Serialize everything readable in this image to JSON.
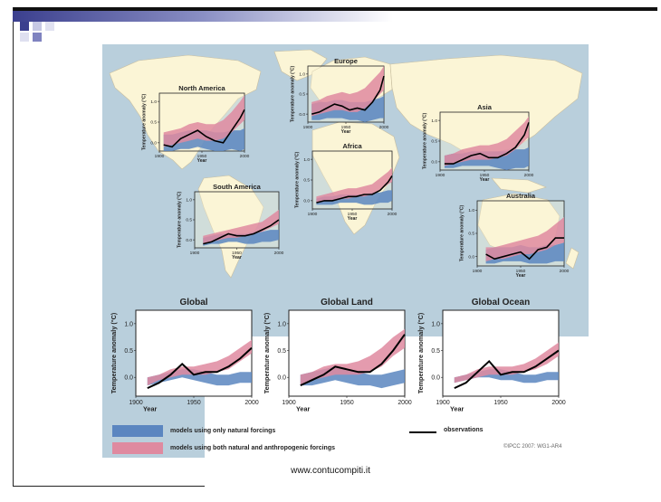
{
  "slide": {
    "footer": "www.contucompiti.it"
  },
  "legend": {
    "natural": "models using only natural forcings",
    "both": "models using both natural and anthropogenic forcings",
    "observations": "observations",
    "credit": "©IPCC 2007: WG1-AR4"
  },
  "colors": {
    "natural_band": "#5b86c0",
    "both_band": "#df8aa0",
    "observation_line": "#000000",
    "ocean": "#b9cfdc",
    "land": "#fbf5d6"
  },
  "chart_data": [
    {
      "type": "area",
      "title": "North America",
      "ylabel": "Temperature anomaly (°C)",
      "xlabel": "Year",
      "xlim": [
        1900,
        2000
      ],
      "ylim": [
        -0.2,
        1.2
      ],
      "xticks": [
        1900,
        1950,
        2000
      ],
      "yticks": [
        0.0,
        0.5,
        1.0
      ],
      "x": [
        1905,
        1915,
        1925,
        1935,
        1945,
        1955,
        1965,
        1975,
        1985,
        1995,
        2000
      ],
      "series": [
        {
          "name": "observations",
          "values": [
            -0.05,
            -0.1,
            0.1,
            0.2,
            0.3,
            0.15,
            0.05,
            0.0,
            0.3,
            0.6,
            0.8
          ]
        },
        {
          "name": "natural_low",
          "values": [
            -0.2,
            -0.2,
            -0.15,
            -0.15,
            -0.1,
            -0.15,
            -0.2,
            -0.2,
            -0.15,
            -0.2,
            -0.15
          ]
        },
        {
          "name": "natural_high",
          "values": [
            0.2,
            0.2,
            0.25,
            0.3,
            0.3,
            0.3,
            0.25,
            0.25,
            0.3,
            0.3,
            0.35
          ]
        },
        {
          "name": "both_low",
          "values": [
            -0.1,
            -0.05,
            0.0,
            0.05,
            0.1,
            0.05,
            0.05,
            0.1,
            0.25,
            0.45,
            0.55
          ]
        },
        {
          "name": "both_high",
          "values": [
            0.25,
            0.3,
            0.35,
            0.45,
            0.5,
            0.45,
            0.45,
            0.55,
            0.75,
            1.0,
            1.15
          ]
        }
      ]
    },
    {
      "type": "area",
      "title": "Europe",
      "ylabel": "Temperature anomaly (°C)",
      "xlabel": "Year",
      "xlim": [
        1900,
        2000
      ],
      "ylim": [
        -0.2,
        1.2
      ],
      "xticks": [
        1900,
        1950,
        2000
      ],
      "yticks": [
        0.0,
        0.5,
        1.0
      ],
      "x": [
        1905,
        1915,
        1925,
        1935,
        1945,
        1955,
        1965,
        1975,
        1985,
        1995,
        2000
      ],
      "series": [
        {
          "name": "observations",
          "values": [
            0.0,
            0.05,
            0.15,
            0.25,
            0.2,
            0.1,
            0.15,
            0.1,
            0.3,
            0.6,
            0.95
          ]
        },
        {
          "name": "natural_low",
          "values": [
            -0.15,
            -0.15,
            -0.1,
            -0.1,
            -0.1,
            -0.15,
            -0.15,
            -0.2,
            -0.15,
            -0.1,
            -0.1
          ]
        },
        {
          "name": "natural_high",
          "values": [
            0.25,
            0.3,
            0.3,
            0.35,
            0.35,
            0.3,
            0.3,
            0.3,
            0.35,
            0.4,
            0.45
          ]
        },
        {
          "name": "both_low",
          "values": [
            -0.05,
            0.0,
            0.05,
            0.1,
            0.1,
            0.05,
            0.05,
            0.15,
            0.3,
            0.5,
            0.6
          ]
        },
        {
          "name": "both_high",
          "values": [
            0.3,
            0.35,
            0.45,
            0.5,
            0.55,
            0.5,
            0.55,
            0.65,
            0.85,
            1.05,
            1.2
          ]
        }
      ]
    },
    {
      "type": "area",
      "title": "Asia",
      "ylabel": "Temperature anomaly (°C)",
      "xlabel": "Year",
      "xlim": [
        1900,
        2000
      ],
      "ylim": [
        -0.2,
        1.2
      ],
      "xticks": [
        1900,
        1950,
        2000
      ],
      "yticks": [
        0.0,
        0.5,
        1.0
      ],
      "x": [
        1905,
        1915,
        1925,
        1935,
        1945,
        1955,
        1965,
        1975,
        1985,
        1995,
        2000
      ],
      "series": [
        {
          "name": "observations",
          "values": [
            -0.05,
            -0.05,
            0.05,
            0.15,
            0.2,
            0.1,
            0.1,
            0.2,
            0.35,
            0.65,
            0.95
          ]
        },
        {
          "name": "natural_low",
          "values": [
            -0.15,
            -0.15,
            -0.1,
            -0.1,
            -0.1,
            -0.1,
            -0.15,
            -0.2,
            -0.15,
            -0.15,
            -0.1
          ]
        },
        {
          "name": "natural_high",
          "values": [
            0.15,
            0.2,
            0.2,
            0.25,
            0.25,
            0.25,
            0.25,
            0.25,
            0.3,
            0.3,
            0.35
          ]
        },
        {
          "name": "both_low",
          "values": [
            -0.1,
            -0.05,
            0.0,
            0.05,
            0.05,
            0.05,
            0.1,
            0.15,
            0.3,
            0.5,
            0.6
          ]
        },
        {
          "name": "both_high",
          "values": [
            0.15,
            0.2,
            0.3,
            0.35,
            0.4,
            0.4,
            0.45,
            0.55,
            0.75,
            0.95,
            1.1
          ]
        }
      ]
    },
    {
      "type": "area",
      "title": "Africa",
      "ylabel": "Temperature anomaly (°C)",
      "xlabel": "Year",
      "xlim": [
        1900,
        2000
      ],
      "ylim": [
        -0.2,
        1.2
      ],
      "xticks": [
        1900,
        1950,
        2000
      ],
      "yticks": [
        0.0,
        0.5,
        1.0
      ],
      "x": [
        1905,
        1915,
        1925,
        1935,
        1945,
        1955,
        1965,
        1975,
        1985,
        1995,
        2000
      ],
      "series": [
        {
          "name": "observations",
          "values": [
            -0.05,
            0.0,
            0.0,
            0.05,
            0.1,
            0.1,
            0.15,
            0.15,
            0.25,
            0.45,
            0.6
          ]
        },
        {
          "name": "natural_low",
          "values": [
            -0.1,
            -0.1,
            -0.1,
            -0.05,
            -0.05,
            -0.05,
            -0.1,
            -0.1,
            -0.05,
            -0.05,
            0.0
          ]
        },
        {
          "name": "natural_high",
          "values": [
            0.05,
            0.1,
            0.1,
            0.15,
            0.15,
            0.15,
            0.15,
            0.2,
            0.2,
            0.25,
            0.25
          ]
        },
        {
          "name": "both_low",
          "values": [
            -0.05,
            0.0,
            0.0,
            0.05,
            0.05,
            0.1,
            0.1,
            0.15,
            0.25,
            0.4,
            0.45
          ]
        },
        {
          "name": "both_high",
          "values": [
            0.1,
            0.15,
            0.2,
            0.25,
            0.3,
            0.3,
            0.35,
            0.4,
            0.55,
            0.7,
            0.8
          ]
        }
      ]
    },
    {
      "type": "area",
      "title": "South America",
      "ylabel": "Temperature anomaly (°C)",
      "xlabel": "Year",
      "xlim": [
        1900,
        2000
      ],
      "ylim": [
        -0.2,
        1.2
      ],
      "xticks": [
        1900,
        1950,
        2000
      ],
      "yticks": [
        0.0,
        0.5,
        1.0
      ],
      "x": [
        1910,
        1920,
        1930,
        1940,
        1950,
        1960,
        1970,
        1980,
        1990,
        2000
      ],
      "series": [
        {
          "name": "observations",
          "values": [
            -0.1,
            -0.05,
            0.05,
            0.15,
            0.1,
            0.1,
            0.15,
            0.25,
            0.35,
            0.5
          ]
        },
        {
          "name": "natural_low",
          "values": [
            -0.15,
            -0.1,
            -0.1,
            -0.05,
            -0.05,
            -0.1,
            -0.1,
            -0.05,
            -0.05,
            0.0
          ]
        },
        {
          "name": "natural_high",
          "values": [
            0.05,
            0.1,
            0.15,
            0.15,
            0.15,
            0.15,
            0.2,
            0.2,
            0.25,
            0.25
          ]
        },
        {
          "name": "both_low",
          "values": [
            -0.1,
            -0.05,
            0.0,
            0.05,
            0.05,
            0.1,
            0.15,
            0.2,
            0.3,
            0.4
          ]
        },
        {
          "name": "both_high",
          "values": [
            0.1,
            0.15,
            0.2,
            0.25,
            0.3,
            0.35,
            0.4,
            0.45,
            0.6,
            0.75
          ]
        }
      ]
    },
    {
      "type": "area",
      "title": "Australia",
      "ylabel": "Temperature anomaly (°C)",
      "xlabel": "Year",
      "xlim": [
        1900,
        2000
      ],
      "ylim": [
        -0.2,
        1.2
      ],
      "xticks": [
        1900,
        1950,
        2000
      ],
      "yticks": [
        0.0,
        0.5,
        1.0
      ],
      "x": [
        1910,
        1920,
        1930,
        1940,
        1950,
        1960,
        1970,
        1980,
        1990,
        2000
      ],
      "series": [
        {
          "name": "observations",
          "values": [
            0.05,
            -0.05,
            0.0,
            0.05,
            0.1,
            -0.05,
            0.15,
            0.2,
            0.4,
            0.4
          ]
        },
        {
          "name": "natural_low",
          "values": [
            -0.15,
            -0.15,
            -0.1,
            -0.1,
            -0.1,
            -0.15,
            -0.15,
            -0.15,
            -0.1,
            -0.1
          ]
        },
        {
          "name": "natural_high",
          "values": [
            0.15,
            0.2,
            0.2,
            0.2,
            0.25,
            0.2,
            0.2,
            0.25,
            0.25,
            0.3
          ]
        },
        {
          "name": "both_low",
          "values": [
            -0.1,
            -0.05,
            -0.05,
            0.0,
            0.05,
            0.05,
            0.1,
            0.15,
            0.25,
            0.3
          ]
        },
        {
          "name": "both_high",
          "values": [
            0.2,
            0.2,
            0.25,
            0.3,
            0.35,
            0.4,
            0.45,
            0.55,
            0.7,
            0.85
          ]
        }
      ]
    },
    {
      "type": "area",
      "title": "Global",
      "ylabel": "Temperature anomaly (°C)",
      "xlabel": "Year",
      "xlim": [
        1900,
        2000
      ],
      "ylim": [
        -0.35,
        1.25
      ],
      "xticks": [
        1900,
        1950,
        2000
      ],
      "yticks": [
        0.0,
        0.5,
        1.0
      ],
      "x": [
        1910,
        1920,
        1930,
        1940,
        1950,
        1960,
        1970,
        1980,
        1990,
        2000
      ],
      "series": [
        {
          "name": "observations",
          "values": [
            -0.2,
            -0.1,
            0.05,
            0.25,
            0.05,
            0.1,
            0.1,
            0.2,
            0.35,
            0.55
          ]
        },
        {
          "name": "natural_low",
          "values": [
            -0.15,
            -0.1,
            -0.05,
            0.0,
            -0.05,
            -0.1,
            -0.15,
            -0.15,
            -0.1,
            -0.1
          ]
        },
        {
          "name": "natural_high",
          "values": [
            0.0,
            0.05,
            0.1,
            0.15,
            0.15,
            0.1,
            0.05,
            0.05,
            0.1,
            0.1
          ]
        },
        {
          "name": "both_low",
          "values": [
            -0.15,
            -0.05,
            0.0,
            0.05,
            0.05,
            0.05,
            0.1,
            0.15,
            0.3,
            0.45
          ]
        },
        {
          "name": "both_high",
          "values": [
            0.0,
            0.05,
            0.15,
            0.2,
            0.2,
            0.25,
            0.3,
            0.4,
            0.55,
            0.7
          ]
        }
      ]
    },
    {
      "type": "area",
      "title": "Global Land",
      "ylabel": "Temperature anomaly (°C)",
      "xlabel": "Year",
      "xlim": [
        1900,
        2000
      ],
      "ylim": [
        -0.35,
        1.25
      ],
      "xticks": [
        1900,
        1950,
        2000
      ],
      "yticks": [
        0.0,
        0.5,
        1.0
      ],
      "x": [
        1910,
        1920,
        1930,
        1940,
        1950,
        1960,
        1970,
        1980,
        1990,
        2000
      ],
      "series": [
        {
          "name": "observations",
          "values": [
            -0.15,
            -0.05,
            0.05,
            0.2,
            0.15,
            0.1,
            0.1,
            0.25,
            0.5,
            0.8
          ]
        },
        {
          "name": "natural_low",
          "values": [
            -0.15,
            -0.15,
            -0.1,
            -0.05,
            -0.1,
            -0.15,
            -0.15,
            -0.2,
            -0.15,
            -0.1
          ]
        },
        {
          "name": "natural_high",
          "values": [
            0.05,
            0.1,
            0.15,
            0.2,
            0.15,
            0.1,
            0.05,
            0.05,
            0.1,
            0.15
          ]
        },
        {
          "name": "both_low",
          "values": [
            -0.15,
            -0.05,
            0.0,
            0.05,
            0.05,
            0.05,
            0.1,
            0.2,
            0.4,
            0.55
          ]
        },
        {
          "name": "both_high",
          "values": [
            0.05,
            0.1,
            0.2,
            0.25,
            0.25,
            0.3,
            0.4,
            0.55,
            0.75,
            0.9
          ]
        }
      ]
    },
    {
      "type": "area",
      "title": "Global Ocean",
      "ylabel": "Temperature anomaly (°C)",
      "xlabel": "Year",
      "xlim": [
        1900,
        2000
      ],
      "ylim": [
        -0.35,
        1.25
      ],
      "xticks": [
        1900,
        1950,
        2000
      ],
      "yticks": [
        0.0,
        0.5,
        1.0
      ],
      "x": [
        1910,
        1920,
        1930,
        1940,
        1950,
        1960,
        1970,
        1980,
        1990,
        2000
      ],
      "series": [
        {
          "name": "observations",
          "values": [
            -0.2,
            -0.1,
            0.1,
            0.3,
            0.05,
            0.1,
            0.1,
            0.2,
            0.35,
            0.5
          ]
        },
        {
          "name": "natural_low",
          "values": [
            -0.1,
            -0.05,
            0.0,
            0.0,
            -0.05,
            -0.05,
            -0.1,
            -0.1,
            -0.05,
            -0.05
          ]
        },
        {
          "name": "natural_high",
          "values": [
            0.0,
            0.05,
            0.1,
            0.15,
            0.15,
            0.1,
            0.05,
            0.05,
            0.1,
            0.1
          ]
        },
        {
          "name": "both_low",
          "values": [
            -0.1,
            -0.05,
            0.0,
            0.05,
            0.05,
            0.05,
            0.1,
            0.15,
            0.25,
            0.4
          ]
        },
        {
          "name": "both_high",
          "values": [
            0.0,
            0.05,
            0.15,
            0.2,
            0.2,
            0.2,
            0.25,
            0.35,
            0.5,
            0.65
          ]
        }
      ]
    }
  ]
}
